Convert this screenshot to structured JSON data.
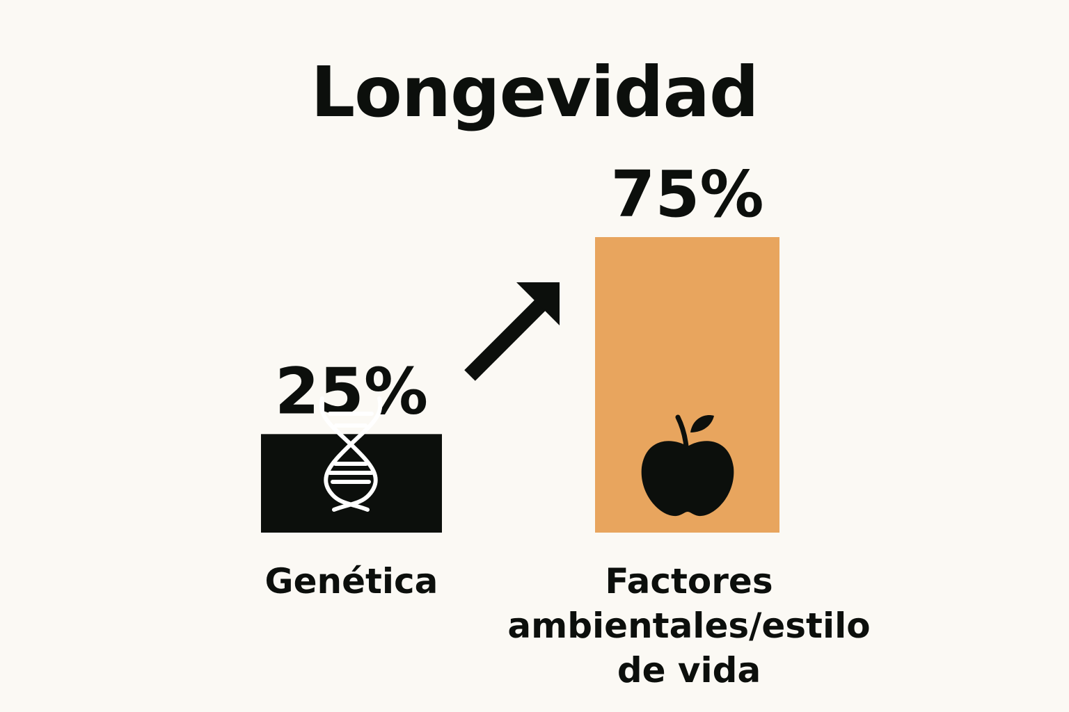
{
  "chart_data": {
    "type": "bar",
    "title": "Longevidad",
    "categories": [
      "Genética",
      "Factores ambientales/estilo de vida"
    ],
    "values": [
      25,
      75
    ],
    "value_labels": [
      "25%",
      "75%"
    ],
    "unit": "%",
    "ylim": [
      0,
      100
    ],
    "grid": false,
    "legend": "none",
    "colors": [
      "#0c0f0c",
      "#e8a55e"
    ],
    "icons": [
      "dna-icon",
      "apple-icon"
    ],
    "annotations": [
      "arrow-up-right"
    ]
  }
}
